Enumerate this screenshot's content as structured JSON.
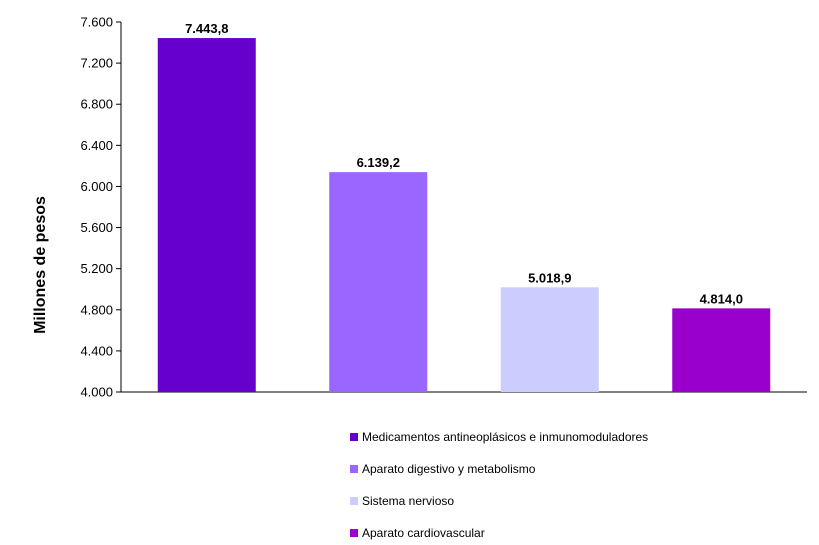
{
  "chart_data": {
    "type": "bar",
    "categories": [
      "Medicamentos antineoplásicos e inmunomoduladores",
      "Aparato digestivo y metabolismo",
      "Sistema nervioso",
      "Aparato cardiovascular"
    ],
    "values": [
      7443.8,
      6139.2,
      5018.9,
      4814.0
    ],
    "data_labels": [
      "7.443,8",
      "6.139,2",
      "5.018,9",
      "4.814,0"
    ],
    "colors": [
      "#6600cc",
      "#9966ff",
      "#ccccff",
      "#9900cc"
    ],
    "ylabel": "Millones de pesos",
    "ylim": [
      4000,
      7600
    ],
    "yticks": [
      4000,
      4400,
      4800,
      5200,
      5600,
      6000,
      6400,
      6800,
      7200,
      7600
    ],
    "ytick_labels": [
      "4.000",
      "4.400",
      "4.800",
      "5.200",
      "5.600",
      "6.000",
      "6.400",
      "6.800",
      "7.200",
      "7.600"
    ],
    "grid": false,
    "legend_position": "bottom"
  }
}
